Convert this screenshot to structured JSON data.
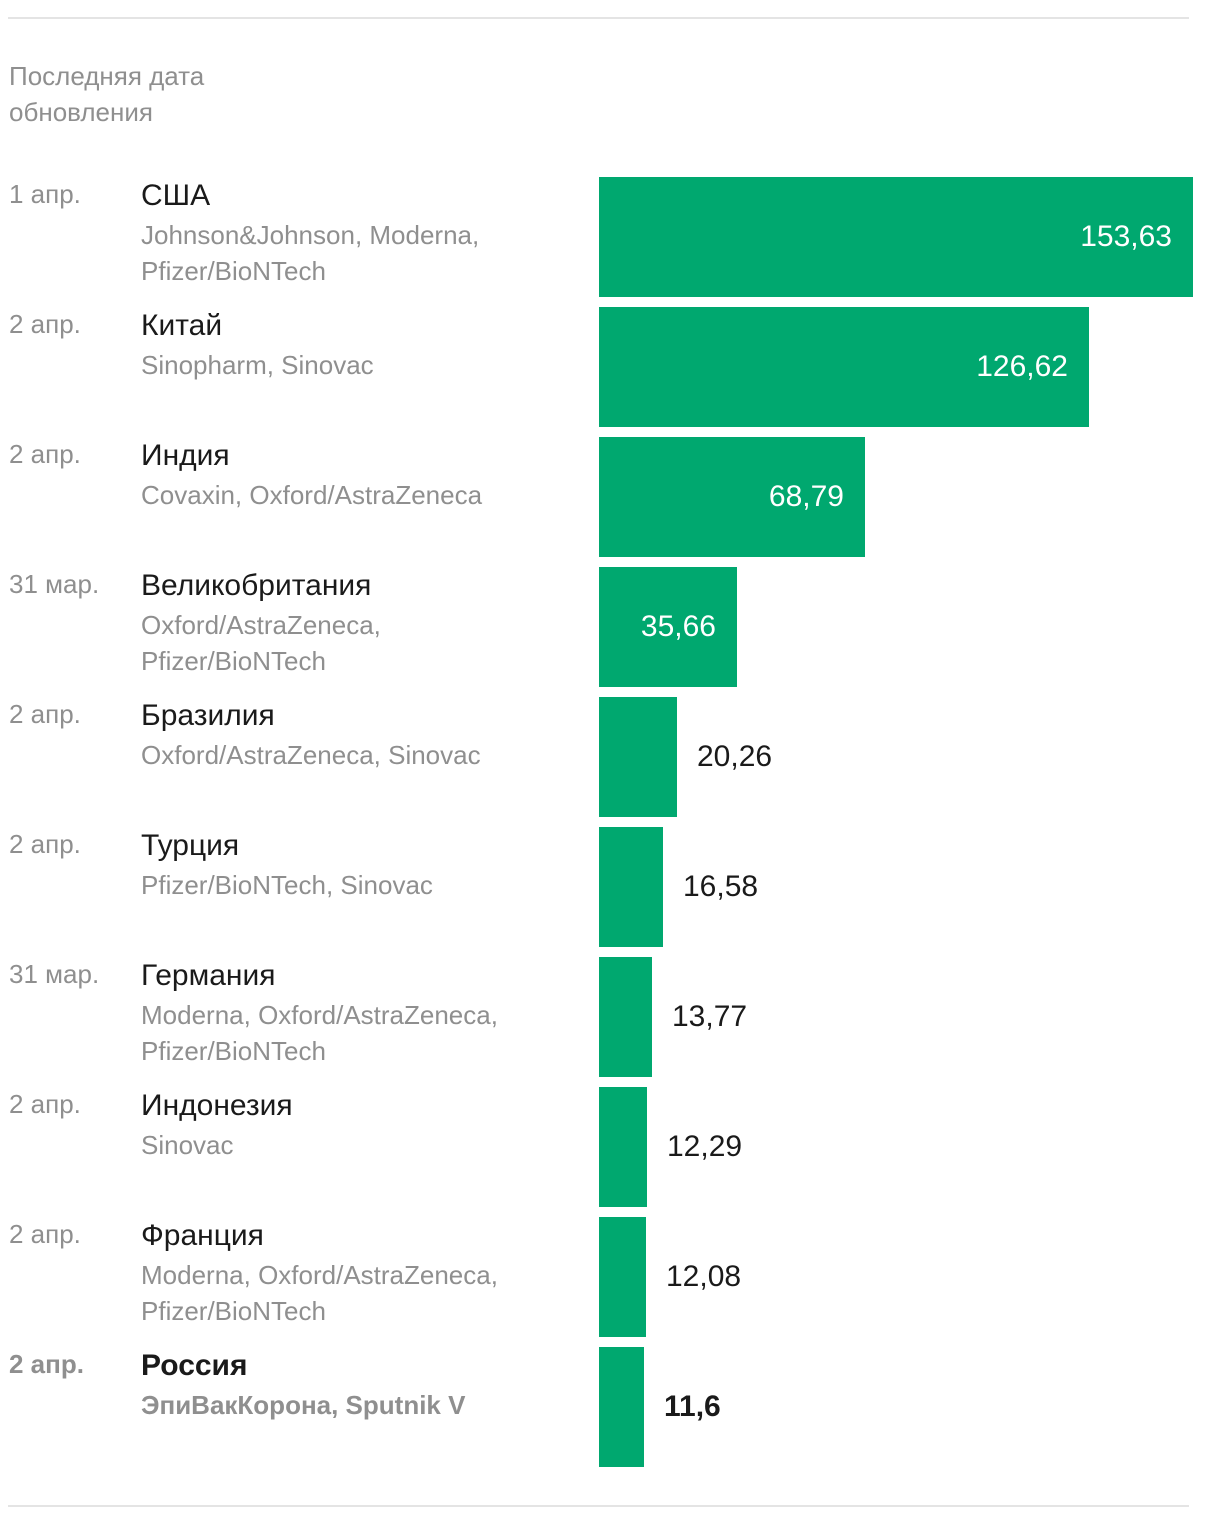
{
  "header_note": "Последняя дата обновления",
  "colors": {
    "bar": "#00a86f",
    "muted_text": "#8f8f8f",
    "main_text": "#1a1a1a"
  },
  "chart_data": {
    "type": "bar",
    "orientation": "horizontal",
    "categories": [
      "США",
      "Китай",
      "Индия",
      "Великобритания",
      "Бразилия",
      "Турция",
      "Германия",
      "Индонезия",
      "Франция",
      "Россия"
    ],
    "values": [
      153.63,
      126.62,
      68.79,
      35.66,
      20.26,
      16.58,
      13.77,
      12.29,
      12.08,
      11.6
    ],
    "rows": [
      {
        "date": "1 апр.",
        "country": "США",
        "vaccines": "Johnson&Johnson, Moderna, Pfizer/BioNTech",
        "value": 153.63,
        "value_label": "153,63"
      },
      {
        "date": "2 апр.",
        "country": "Китай",
        "vaccines": "Sinopharm, Sinovac",
        "value": 126.62,
        "value_label": "126,62"
      },
      {
        "date": "2 апр.",
        "country": "Индия",
        "vaccines": "Covaxin, Oxford/AstraZeneca",
        "value": 68.79,
        "value_label": "68,79"
      },
      {
        "date": "31 мар.",
        "country": "Великобритания",
        "vaccines": "Oxford/AstraZeneca, Pfizer/BioNTech",
        "value": 35.66,
        "value_label": "35,66"
      },
      {
        "date": "2 апр.",
        "country": "Бразилия",
        "vaccines": "Oxford/AstraZeneca, Sinovac",
        "value": 20.26,
        "value_label": "20,26"
      },
      {
        "date": "2 апр.",
        "country": "Турция",
        "vaccines": "Pfizer/BioNTech, Sinovac",
        "value": 16.58,
        "value_label": "16,58"
      },
      {
        "date": "31 мар.",
        "country": "Германия",
        "vaccines": "Moderna, Oxford/AstraZeneca, Pfizer/BioNTech",
        "value": 13.77,
        "value_label": "13,77"
      },
      {
        "date": "2 апр.",
        "country": "Индонезия",
        "vaccines": "Sinovac",
        "value": 12.29,
        "value_label": "12,29"
      },
      {
        "date": "2 апр.",
        "country": "Франция",
        "vaccines": "Moderna, Oxford/AstraZeneca, Pfizer/BioNTech",
        "value": 12.08,
        "value_label": "12,08"
      },
      {
        "date": "2 апр.",
        "country": "Россия",
        "vaccines": "ЭпиВакКорона, Sputnik V",
        "value": 11.6,
        "value_label": "11,6",
        "highlight": true
      }
    ],
    "xlim": [
      0,
      153.63
    ],
    "grid": false,
    "legend": "none"
  }
}
